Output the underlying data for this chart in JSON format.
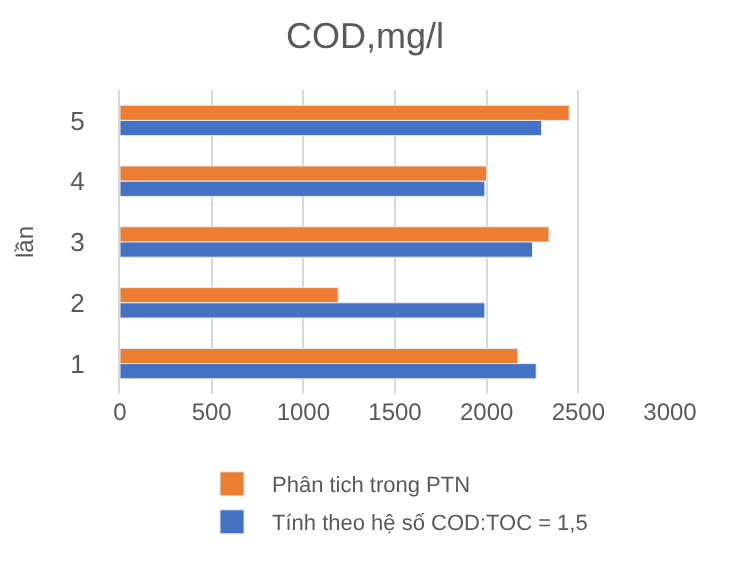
{
  "chart_data": {
    "type": "bar",
    "orientation": "horizontal",
    "title": "COD,mg/l",
    "ylabel": "lần",
    "categories": [
      "5",
      "4",
      "3",
      "2",
      "1"
    ],
    "series": [
      {
        "name": "Phân tich trong PTN",
        "color": "#ed7d31",
        "values": [
          2450,
          2000,
          2340,
          1190,
          2170
        ]
      },
      {
        "name": "Tính theo hệ số COD:TOC = 1,5",
        "color": "#4472c4",
        "values": [
          2300,
          1990,
          2250,
          1990,
          2270
        ]
      }
    ],
    "xlim": [
      0,
      3000
    ],
    "xticks": [
      0,
      500,
      1000,
      1500,
      2000,
      2500,
      3000
    ],
    "grid": "x",
    "legend": "bottom"
  }
}
